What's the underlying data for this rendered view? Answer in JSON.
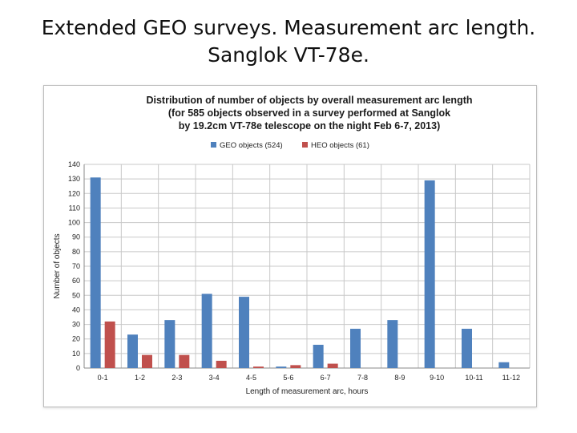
{
  "slide": {
    "title_line1": "Extended GEO surveys. Measurement arc length.",
    "title_line2": "Sanglok VT-78e."
  },
  "chart_data": {
    "type": "bar",
    "title_lines": [
      "Distribution of number of objects by overall measurement arc length",
      "(for 585 objects observed in a survey performed at Sanglok",
      "by 19.2cm VT-78e telescope on the night Feb 6-7, 2013)"
    ],
    "xlabel": "Length of measurement arc, hours",
    "ylabel": "Number of objects",
    "ylim": [
      0,
      140
    ],
    "ytick_step": 10,
    "grid": true,
    "legend_position": "top-center",
    "categories": [
      "0-1",
      "1-2",
      "2-3",
      "3-4",
      "4-5",
      "5-6",
      "6-7",
      "7-8",
      "8-9",
      "9-10",
      "10-11",
      "11-12"
    ],
    "series": [
      {
        "name": "GEO objects (524)",
        "color": "#4f81bd",
        "values": [
          131,
          23,
          33,
          51,
          49,
          1,
          16,
          27,
          33,
          129,
          27,
          4
        ]
      },
      {
        "name": "HEO objects (61)",
        "color": "#c0504d",
        "values": [
          32,
          9,
          9,
          5,
          1,
          2,
          3,
          0,
          0,
          0,
          0,
          0
        ]
      }
    ]
  }
}
